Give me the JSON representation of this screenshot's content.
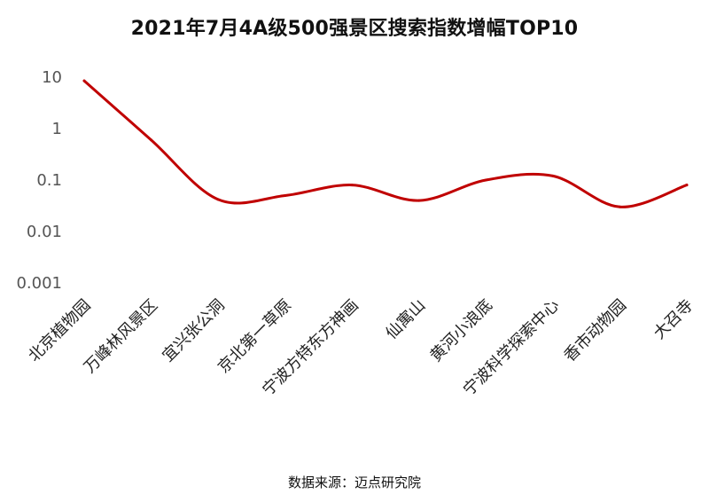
{
  "chart_data": {
    "type": "line",
    "title": "2021年7月4A级500强景区搜索指数增幅TOP10",
    "xlabel": "",
    "ylabel": "",
    "yscale": "log",
    "ylim": [
      0.001,
      10
    ],
    "yticks": [
      "10",
      "1",
      "0.1",
      "0.01",
      "0.001"
    ],
    "grid": false,
    "legend": "none",
    "categories": [
      "北京植物园",
      "万峰林风景区",
      "宜兴张公洞",
      "京北第一草原",
      "宁波方特东方神画",
      "仙寓山",
      "黄河小浪底",
      "宁波科学探索中心",
      "香市动物园",
      "大召寺"
    ],
    "series": [
      {
        "values": [
          8.5,
          0.6,
          0.042,
          0.05,
          0.08,
          0.04,
          0.1,
          0.12,
          0.03,
          0.08
        ],
        "color": "#c00000"
      }
    ]
  },
  "source": "数据来源：迈点研究院"
}
